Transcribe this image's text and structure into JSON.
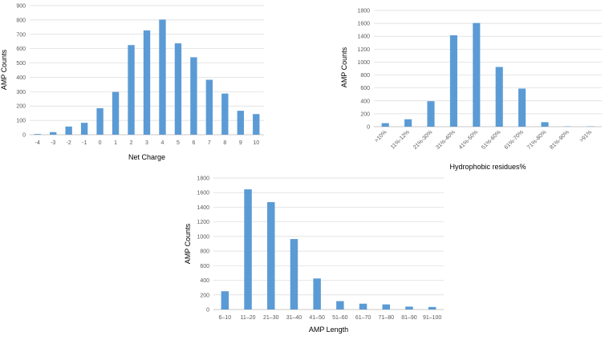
{
  "chart_data": [
    {
      "type": "bar",
      "title": "",
      "xlabel": "Net Charge",
      "ylabel": "AMP Counts",
      "categories": [
        "-4",
        "-3",
        "-2",
        "-1",
        "0",
        "1",
        "2",
        "3",
        "4",
        "5",
        "6",
        "7",
        "8",
        "9",
        "10"
      ],
      "values": [
        5,
        18,
        57,
        83,
        185,
        298,
        625,
        727,
        803,
        637,
        540,
        383,
        287,
        167,
        144
      ],
      "ylim": [
        0,
        900
      ],
      "yticks": [
        "0",
        "100",
        "200",
        "300",
        "400",
        "500",
        "600",
        "700",
        "800",
        "900"
      ],
      "grid": true,
      "color": "#5B9BD5"
    },
    {
      "type": "bar",
      "title": "",
      "xlabel": "Hydrophobic residues%",
      "ylabel": "AMP Counts",
      "categories": [
        ">10%",
        "11%-12%",
        "21%-30%",
        "31%-40%",
        "41%-50%",
        "51%-60%",
        "61%-70%",
        "71%-80%",
        "81%-90%",
        ">91%"
      ],
      "values": [
        55,
        115,
        395,
        1415,
        1605,
        925,
        590,
        70,
        5,
        5
      ],
      "ylim": [
        0,
        1800
      ],
      "yticks": [
        "0",
        "200",
        "400",
        "600",
        "800",
        "1000",
        "1200",
        "1400",
        "1600",
        "1800"
      ],
      "grid": true,
      "color": "#5B9BD5"
    },
    {
      "type": "bar",
      "title": "",
      "xlabel": "AMP Length",
      "ylabel": "AMP Counts",
      "categories": [
        "6–10",
        "11–20",
        "21–30",
        "31–40",
        "41–50",
        "51–60",
        "61–70",
        "71–80",
        "81–90",
        "91–100"
      ],
      "values": [
        250,
        1645,
        1470,
        965,
        425,
        115,
        80,
        70,
        40,
        35
      ],
      "ylim": [
        0,
        1800
      ],
      "yticks": [
        "0",
        "200",
        "400",
        "600",
        "800",
        "1000",
        "1200",
        "1400",
        "1600",
        "1800"
      ],
      "grid": true,
      "color": "#5B9BD5"
    }
  ]
}
